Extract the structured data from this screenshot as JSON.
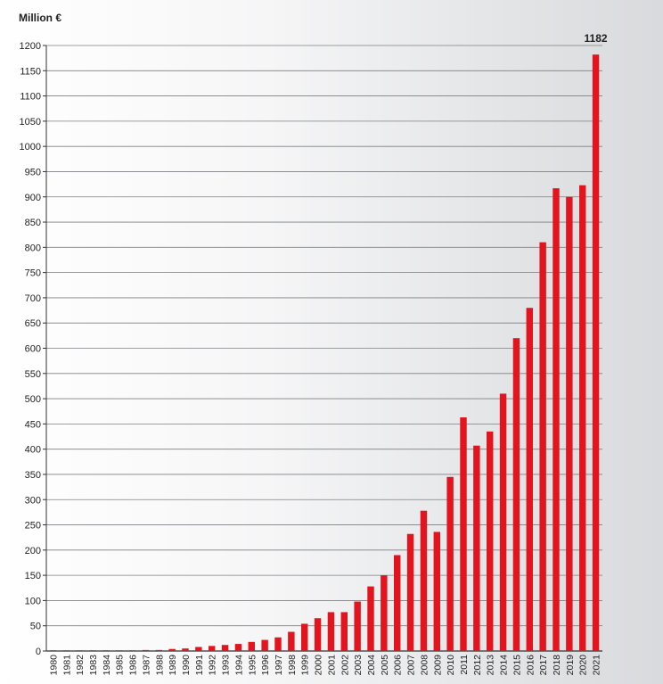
{
  "chart_data": {
    "type": "bar",
    "ylabel": "Million €",
    "xlabel": "",
    "title": "",
    "ylim": [
      0,
      1200
    ],
    "yticks": [
      0,
      50,
      100,
      150,
      200,
      250,
      300,
      350,
      400,
      450,
      500,
      550,
      600,
      650,
      700,
      750,
      800,
      850,
      900,
      950,
      1000,
      1050,
      1100,
      1150,
      1200
    ],
    "grid": true,
    "legend": "none",
    "bar_color": "#e3141d",
    "categories": [
      "1980",
      "1981",
      "1982",
      "1983",
      "1984",
      "1985",
      "1986",
      "1987",
      "1988",
      "1989",
      "1990",
      "1991",
      "1992",
      "1993",
      "1994",
      "1995",
      "1996",
      "1997",
      "1998",
      "1999",
      "2000",
      "2001",
      "2002",
      "2003",
      "2004",
      "2005",
      "2006",
      "2007",
      "2008",
      "2009",
      "2010",
      "2011",
      "2012",
      "2013",
      "2014",
      "2015",
      "2016",
      "2017",
      "2018",
      "2019",
      "2020",
      "2021"
    ],
    "values": [
      0.5,
      0.5,
      0.5,
      0.5,
      0.5,
      0.5,
      0.5,
      2,
      2,
      4,
      5,
      8,
      10,
      12,
      14,
      18,
      22,
      27,
      38,
      54,
      65,
      77,
      77,
      98,
      128,
      150,
      190,
      232,
      278,
      236,
      345,
      463,
      407,
      435,
      510,
      620,
      680,
      810,
      917,
      900,
      923,
      1182
    ],
    "data_labels": [
      {
        "category": "2021",
        "text": "1182"
      }
    ]
  }
}
